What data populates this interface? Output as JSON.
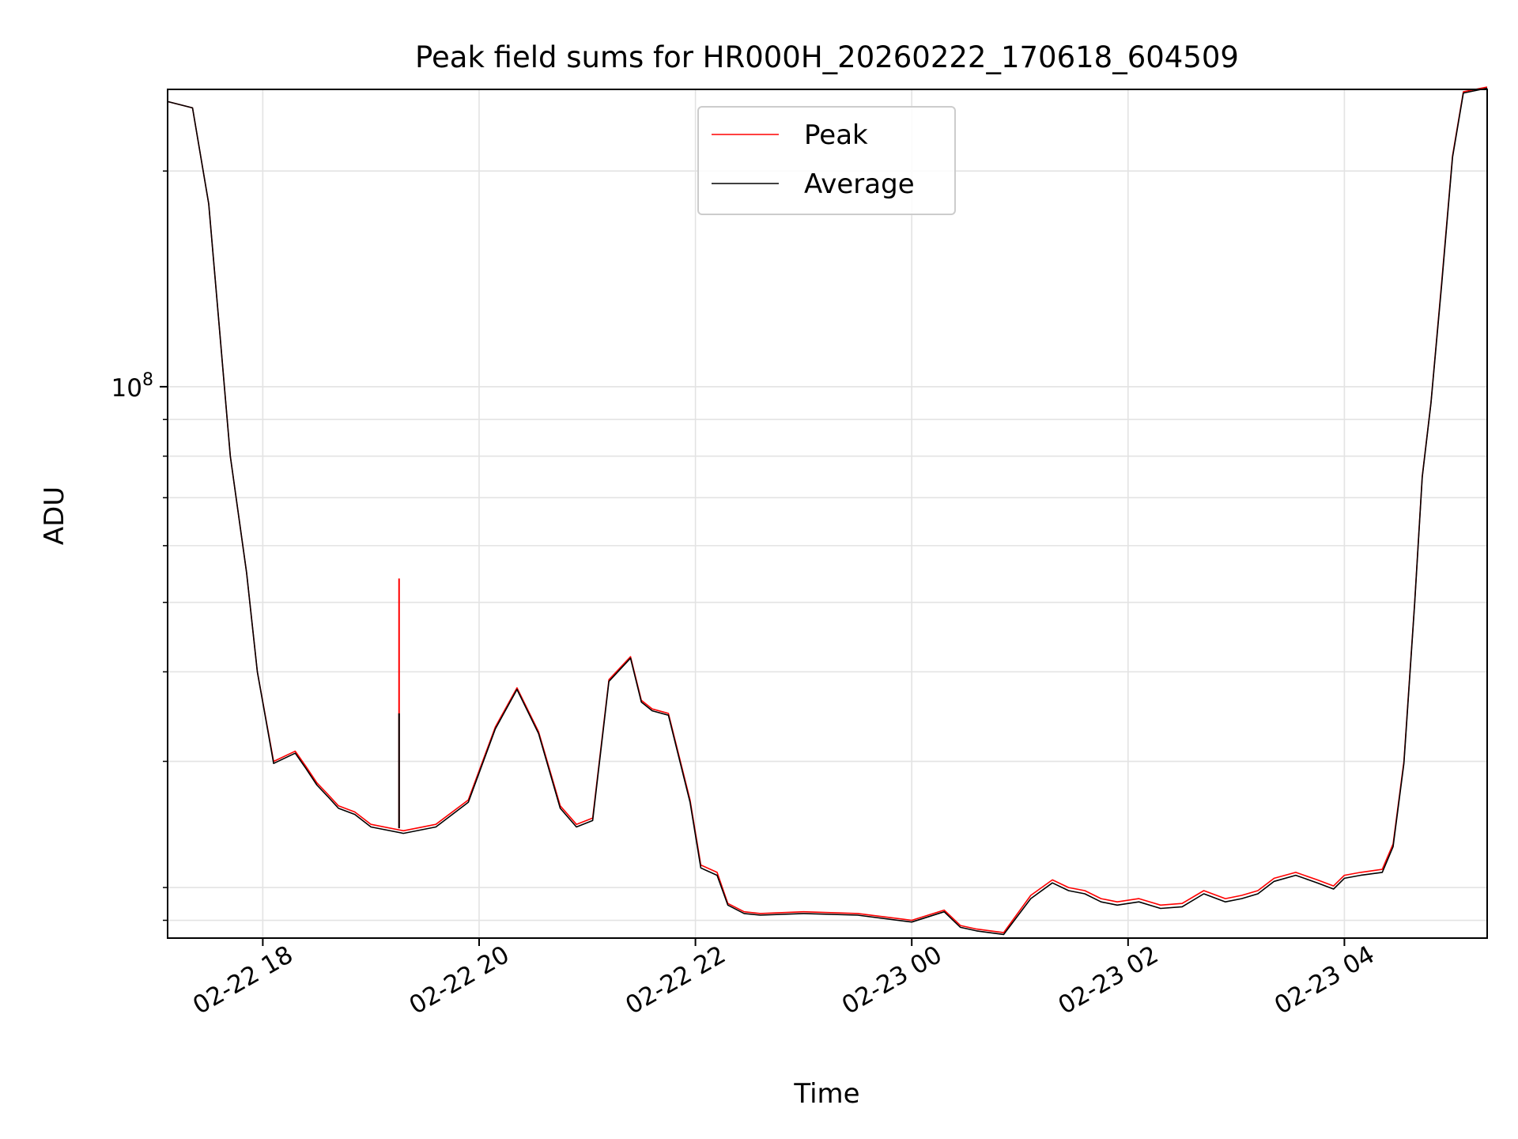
{
  "chart_data": {
    "type": "line",
    "title": "Peak field sums for HR000H_20260222_170618_604509",
    "xlabel": "Time",
    "ylabel": "ADU",
    "yscale": "log",
    "ylim": [
      17000000,
      260000000
    ],
    "xlim_hours": [
      17.12,
      29.32
    ],
    "x_tick_hours": [
      18,
      20,
      22,
      24,
      26,
      28
    ],
    "x_tick_labels": [
      "02-22 18",
      "02-22 20",
      "02-22 22",
      "02-23 00",
      "02-23 02",
      "02-23 04"
    ],
    "y_major_ticks": [
      {
        "value": 100000000,
        "base": "10",
        "exp": "8"
      }
    ],
    "y_minor_ticks": [
      18000000,
      20000000,
      30000000,
      40000000,
      50000000,
      60000000,
      70000000,
      80000000,
      90000000,
      200000000
    ],
    "grid": true,
    "legend": {
      "position": "top-center",
      "entries": [
        "Peak",
        "Average"
      ]
    },
    "series": [
      {
        "name": "Peak",
        "color": "#ff0000",
        "x_hours": [
          17.12,
          17.35,
          17.5,
          17.6,
          17.7,
          17.85,
          17.95,
          18.1,
          18.3,
          18.4,
          18.5,
          18.6,
          18.7,
          18.85,
          19.0,
          19.3,
          19.6,
          19.9,
          20.15,
          20.35,
          20.55,
          20.75,
          20.9,
          21.05,
          21.2,
          21.4,
          21.5,
          21.6,
          21.75,
          21.95,
          22.05,
          22.2,
          22.3,
          22.45,
          22.6,
          23.0,
          23.5,
          24.0,
          24.3,
          24.45,
          24.6,
          24.85,
          25.1,
          25.3,
          25.45,
          25.6,
          25.75,
          25.9,
          26.1,
          26.3,
          26.5,
          26.7,
          26.9,
          27.05,
          27.2,
          27.35,
          27.55,
          27.75,
          27.9,
          28.0,
          28.15,
          28.35,
          28.45,
          28.55,
          28.65,
          28.72,
          28.8,
          28.9,
          29.0,
          29.1,
          29.32
        ],
        "values": [
          250000000,
          245000000,
          180000000,
          120000000,
          80000000,
          55000000,
          40000000,
          30000000,
          31000000,
          29500000,
          28000000,
          27000000,
          26000000,
          25500000,
          24500000,
          24000000,
          24500000,
          26500000,
          33500000,
          38000000,
          33000000,
          26000000,
          24500000,
          25000000,
          39000000,
          42000000,
          36500000,
          35500000,
          35000000,
          26500000,
          21500000,
          21000000,
          19000000,
          18500000,
          18400000,
          18500000,
          18400000,
          18000000,
          18600000,
          17700000,
          17500000,
          17300000,
          19500000,
          20500000,
          20000000,
          19800000,
          19300000,
          19100000,
          19300000,
          18900000,
          19000000,
          19800000,
          19300000,
          19500000,
          19800000,
          20600000,
          21000000,
          20500000,
          20100000,
          20800000,
          21000000,
          21200000,
          23000000,
          30000000,
          50000000,
          75000000,
          95000000,
          140000000,
          210000000,
          258000000,
          262000000
        ]
      },
      {
        "name": "Average",
        "color": "#000000",
        "x_hours": [
          17.12,
          17.35,
          17.5,
          17.6,
          17.7,
          17.85,
          17.95,
          18.1,
          18.3,
          18.4,
          18.5,
          18.6,
          18.7,
          18.85,
          19.0,
          19.3,
          19.6,
          19.9,
          20.15,
          20.35,
          20.55,
          20.75,
          20.9,
          21.05,
          21.2,
          21.4,
          21.5,
          21.6,
          21.75,
          21.95,
          22.05,
          22.2,
          22.3,
          22.45,
          22.6,
          23.0,
          23.5,
          24.0,
          24.3,
          24.45,
          24.6,
          24.85,
          25.1,
          25.3,
          25.45,
          25.6,
          25.75,
          25.9,
          26.1,
          26.3,
          26.5,
          26.7,
          26.9,
          27.05,
          27.2,
          27.35,
          27.55,
          27.75,
          27.9,
          28.0,
          28.15,
          28.35,
          28.45,
          28.55,
          28.65,
          28.72,
          28.8,
          28.9,
          29.0,
          29.1,
          29.32
        ],
        "values": [
          250000000,
          245000000,
          180000000,
          120000000,
          80000000,
          55000000,
          40000000,
          29800000,
          30800000,
          29300000,
          27800000,
          26800000,
          25800000,
          25300000,
          24300000,
          23800000,
          24300000,
          26300000,
          33300000,
          37800000,
          32800000,
          25800000,
          24300000,
          24800000,
          38800000,
          41800000,
          36300000,
          35300000,
          34800000,
          26300000,
          21300000,
          20800000,
          18900000,
          18400000,
          18300000,
          18400000,
          18300000,
          17900000,
          18500000,
          17600000,
          17400000,
          17200000,
          19300000,
          20300000,
          19800000,
          19600000,
          19100000,
          18900000,
          19100000,
          18700000,
          18800000,
          19600000,
          19100000,
          19300000,
          19600000,
          20400000,
          20800000,
          20300000,
          19900000,
          20600000,
          20800000,
          21000000,
          22800000,
          29800000,
          49800000,
          74800000,
          94800000,
          139000000,
          209000000,
          257000000,
          261000000
        ]
      }
    ],
    "spikes": [
      {
        "series": "Peak",
        "x_hours": 19.26,
        "value": 54000000
      },
      {
        "series": "Average",
        "x_hours": 19.26,
        "value": 35000000
      }
    ]
  }
}
